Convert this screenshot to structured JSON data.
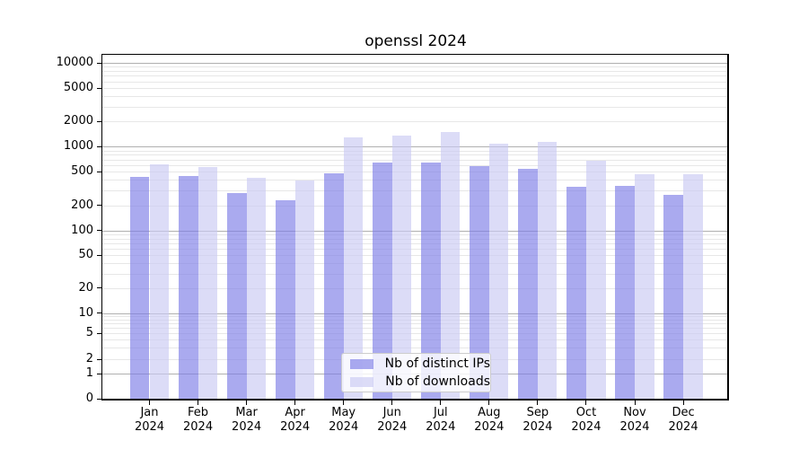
{
  "title": "openssl 2024",
  "legend": {
    "items": [
      {
        "label": "Nb of distinct IPs",
        "color": "#7c7ce7"
      },
      {
        "label": "Nb of downloads",
        "color": "#cacaf2"
      }
    ]
  },
  "colors": {
    "bar_alpha": 0.65,
    "major_grid": "#b0b0b0",
    "minor_grid": "#e7e7e7",
    "axis": "#000000",
    "background": "#ffffff"
  },
  "chart_data": {
    "type": "bar",
    "title": "openssl 2024",
    "categories": [
      "Jan 2024",
      "Feb 2024",
      "Mar 2024",
      "Apr 2024",
      "May 2024",
      "Jun 2024",
      "Jul 2024",
      "Aug 2024",
      "Sep 2024",
      "Oct 2024",
      "Nov 2024",
      "Dec 2024"
    ],
    "series": [
      {
        "name": "Nb of distinct IPs",
        "values": [
          435,
          450,
          277,
          228,
          485,
          650,
          645,
          585,
          540,
          332,
          343,
          264
        ]
      },
      {
        "name": "Nb of downloads",
        "values": [
          620,
          575,
          425,
          390,
          1280,
          1345,
          1480,
          1085,
          1150,
          675,
          465,
          465
        ]
      }
    ],
    "yscale": "symlog",
    "y_ticks": [
      0,
      1,
      2,
      5,
      10,
      20,
      50,
      100,
      200,
      500,
      1000,
      2000,
      5000,
      10000
    ],
    "y_tick_labels": [
      "0",
      "1",
      "2",
      "5",
      "10",
      "20",
      "50",
      "100",
      "200",
      "500",
      "1000",
      "2000",
      "5000",
      "10000"
    ],
    "ylim": [
      0,
      12800
    ],
    "grid": "horizontal major and minor gridlines",
    "legend_position": "lower center inside axes"
  }
}
